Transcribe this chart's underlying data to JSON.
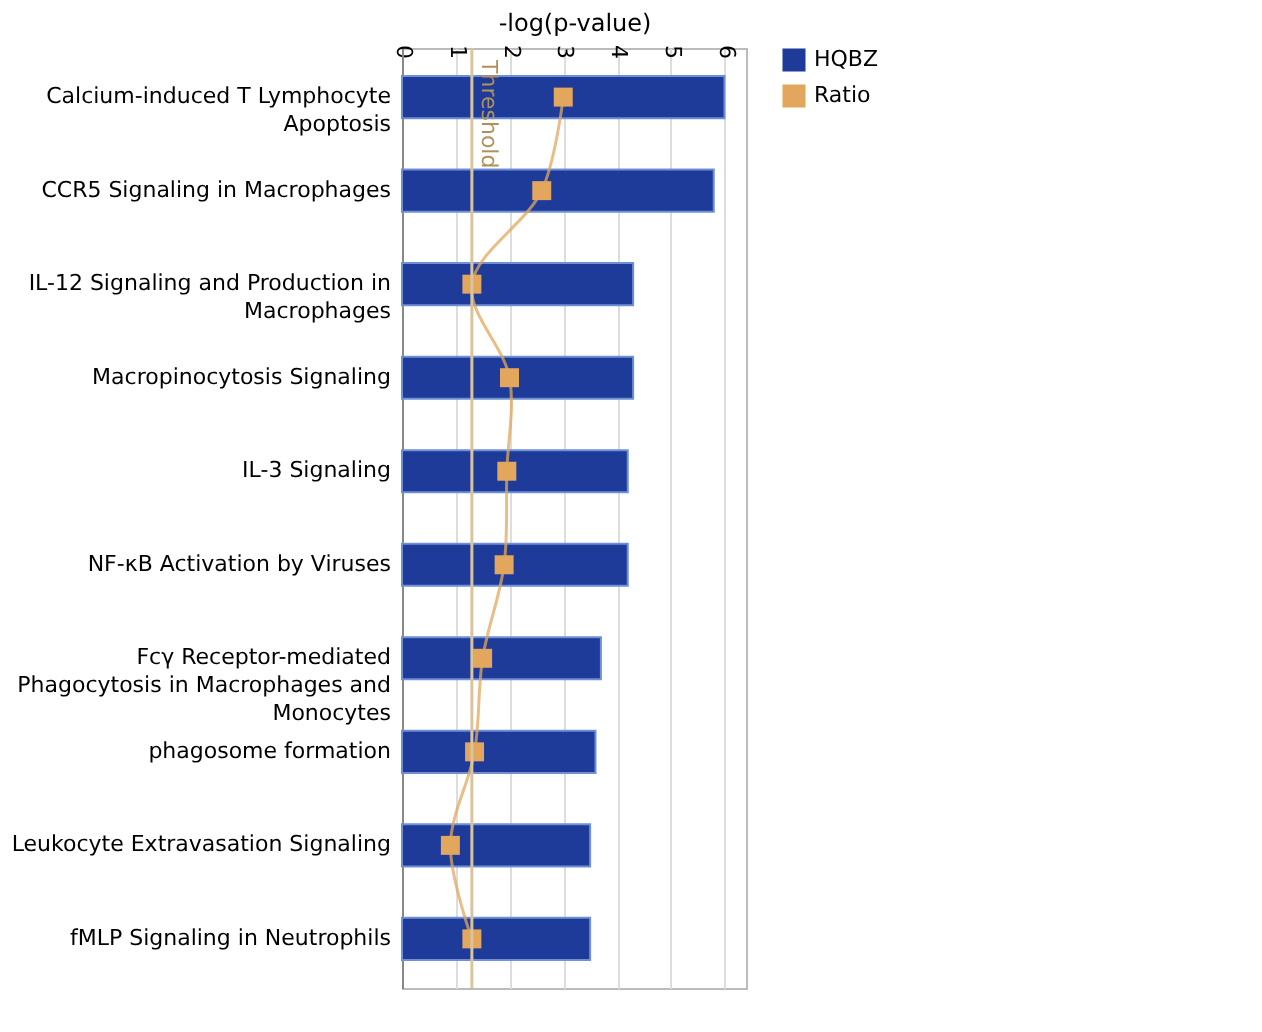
{
  "chart_data": {
    "type": "bar",
    "orientation": "horizontal",
    "xlabel": "-log(p-value)",
    "categories": [
      "Calcium-induced T Lymphocyte Apoptosis",
      "CCR5 Signaling in Macrophages",
      "IL-12 Signaling and Production in Macrophages",
      "Macropinocytosis Signaling",
      "IL-3 Signaling",
      "NF-κB Activation by Viruses",
      "Fcγ Receptor-mediated Phagocytosis in Macrophages and Monocytes",
      "phagosome formation",
      "Leukocyte Extravasation Signaling",
      "fMLP Signaling in Neutrophils"
    ],
    "series": [
      {
        "name": "HQBZ",
        "color": "#1f3b9a",
        "values": [
          6.0,
          5.8,
          4.3,
          4.3,
          4.2,
          4.2,
          3.7,
          3.6,
          3.5,
          3.5
        ]
      },
      {
        "name": "Ratio",
        "type": "line",
        "color": "#e2a75c",
        "values": [
          3.0,
          2.6,
          1.3,
          2.0,
          1.95,
          1.9,
          1.5,
          1.35,
          0.9,
          1.3
        ]
      }
    ],
    "xlim": [
      0,
      6.4
    ],
    "xticks": [
      0,
      1,
      2,
      3,
      4,
      5,
      6
    ],
    "grid": "x",
    "legend": "top right",
    "marker": "square",
    "ref_lines": [
      {
        "axis": "x",
        "value": 1.3,
        "label": "Threshold",
        "color": "#d9c49e"
      }
    ]
  }
}
